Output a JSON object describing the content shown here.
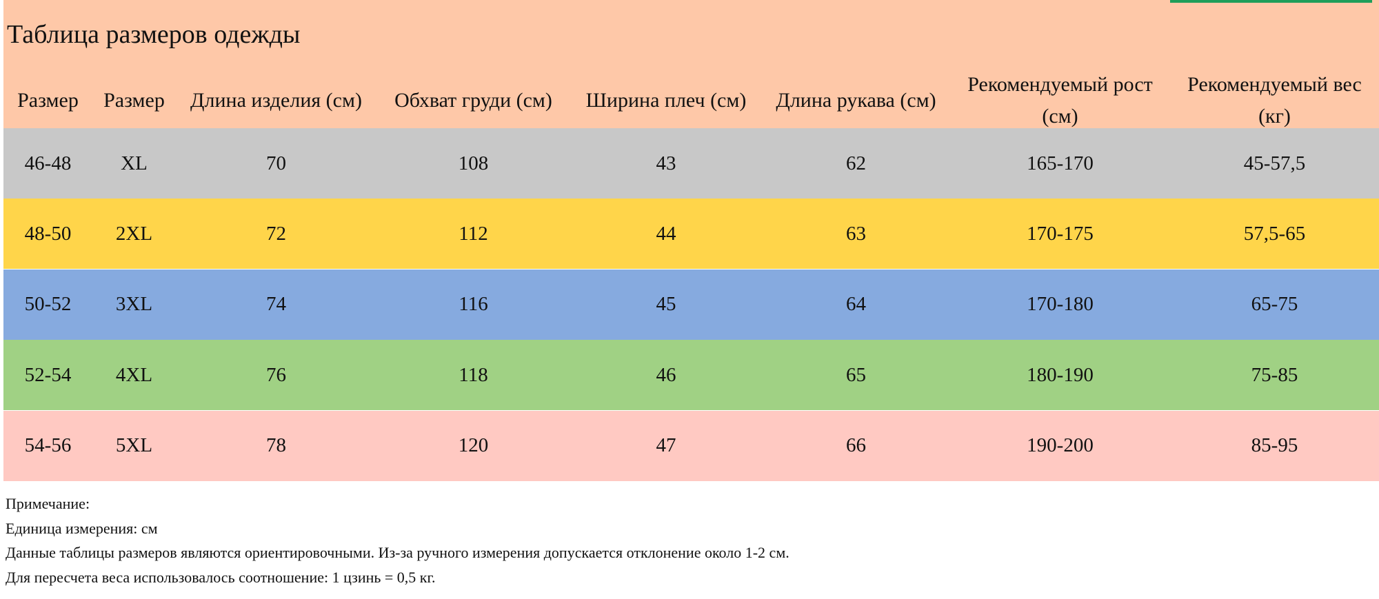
{
  "title": "Таблица размеров одежды",
  "table": {
    "columns": [
      "Размер",
      "Размер",
      "Длина изделия (см)",
      "Обхват груди (см)",
      "Ширина плеч (см)",
      "Длина рукава (см)",
      "Рекомендуемый рост (см)",
      "Рекомендуемый вес (кг)"
    ],
    "rows": [
      {
        "color": "#c8c8c8",
        "cells": [
          "46-48",
          "XL",
          "70",
          "108",
          "43",
          "62",
          "165-170",
          "45-57,5"
        ]
      },
      {
        "color": "#ffd54a",
        "cells": [
          "48-50",
          "2XL",
          "72",
          "112",
          "44",
          "63",
          "170-175",
          "57,5-65"
        ]
      },
      {
        "color": "#86aadf",
        "cells": [
          "50-52",
          "3XL",
          "74",
          "116",
          "45",
          "64",
          "170-180",
          "65-75"
        ]
      },
      {
        "color": "#a0d184",
        "cells": [
          "52-54",
          "4XL",
          "76",
          "118",
          "46",
          "65",
          "180-190",
          "75-85"
        ]
      },
      {
        "color": "#ffc9c2",
        "cells": [
          "54-56",
          "5XL",
          "78",
          "120",
          "47",
          "66",
          "190-200",
          "85-95"
        ]
      }
    ]
  },
  "notes": [
    "Примечание:",
    "Единица измерения: см",
    "Данные таблицы размеров являются ориентировочными. Из-за ручного измерения допускается отклонение около 1-2 см.",
    "Для пересчета веса использовалось соотношение: 1 цзинь = 0,5 кг."
  ]
}
